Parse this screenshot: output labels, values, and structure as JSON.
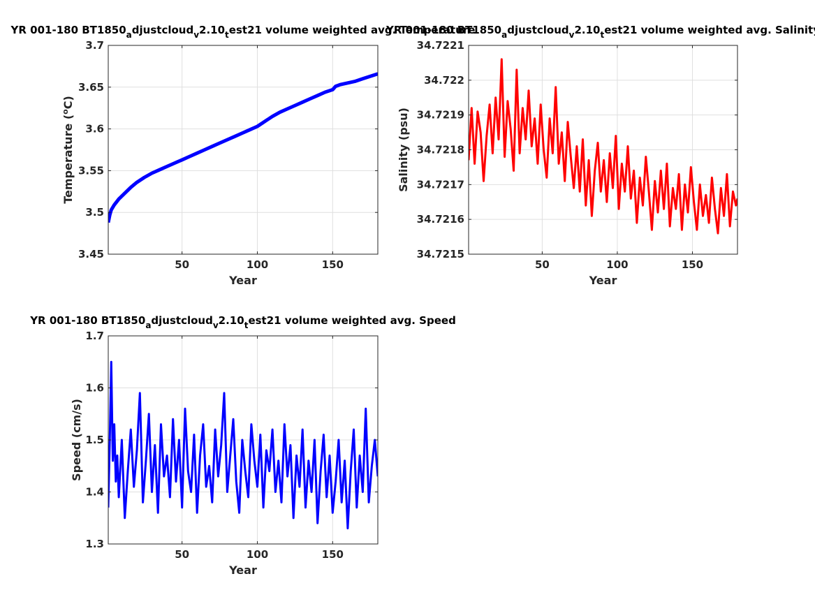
{
  "chart_data": [
    {
      "type": "line",
      "title_parts": [
        "YR 001-180 BT1850",
        "a",
        "djustcloud",
        "v",
        "2.10",
        "t",
        "est21 volume weighted avg. Temperature"
      ],
      "xlabel": "Year",
      "ylabel": "Temperature (",
      "ylabel_sup": "o",
      "ylabel_tail": "C)",
      "xlim": [
        1,
        180
      ],
      "ylim": [
        3.45,
        3.7
      ],
      "xticks": [
        50,
        100,
        150
      ],
      "xtick_labels": [
        "50",
        "100",
        "150"
      ],
      "yticks": [
        3.45,
        3.5,
        3.55,
        3.6,
        3.65,
        3.7
      ],
      "ytick_labels": [
        "3.45",
        "3.5",
        "3.55",
        "3.6",
        "3.65",
        "3.7"
      ],
      "grid": true,
      "color": "#0000ff",
      "line_width": 5,
      "x": [
        1,
        2,
        3,
        5,
        8,
        12,
        16,
        20,
        25,
        30,
        35,
        40,
        45,
        50,
        55,
        60,
        65,
        70,
        75,
        80,
        85,
        90,
        95,
        100,
        105,
        110,
        115,
        120,
        125,
        130,
        135,
        140,
        145,
        150,
        152,
        155,
        160,
        165,
        170,
        175,
        180
      ],
      "y": [
        3.488,
        3.497,
        3.503,
        3.509,
        3.516,
        3.523,
        3.53,
        3.536,
        3.542,
        3.547,
        3.551,
        3.555,
        3.559,
        3.563,
        3.567,
        3.571,
        3.575,
        3.579,
        3.583,
        3.587,
        3.591,
        3.595,
        3.599,
        3.603,
        3.609,
        3.615,
        3.62,
        3.624,
        3.628,
        3.632,
        3.636,
        3.64,
        3.644,
        3.647,
        3.651,
        3.653,
        3.655,
        3.657,
        3.66,
        3.663,
        3.666
      ]
    },
    {
      "type": "line",
      "title_parts": [
        "YR 001-180 BT1850",
        "a",
        "djustcloud",
        "v",
        "2.10",
        "t",
        "est21 volume weighted avg. Salinity"
      ],
      "xlabel": "Year",
      "ylabel": "Salinity (psu)",
      "xlim": [
        1,
        180
      ],
      "ylim": [
        34.7215,
        34.7221
      ],
      "xticks": [
        50,
        100,
        150
      ],
      "xtick_labels": [
        "50",
        "100",
        "150"
      ],
      "yticks": [
        34.7215,
        34.7216,
        34.7217,
        34.7218,
        34.7219,
        34.722,
        34.7221
      ],
      "ytick_labels": [
        "34.7215",
        "34.7216",
        "34.7217",
        "34.7218",
        "34.7219",
        "34.722",
        "34.7221"
      ],
      "grid": true,
      "color": "#ff0000",
      "line_width": 3,
      "x": [
        1,
        3,
        5,
        7,
        9,
        11,
        13,
        15,
        17,
        19,
        21,
        23,
        25,
        27,
        29,
        31,
        33,
        35,
        37,
        39,
        41,
        43,
        45,
        47,
        49,
        51,
        53,
        55,
        57,
        59,
        61,
        63,
        65,
        67,
        69,
        71,
        73,
        75,
        77,
        79,
        81,
        83,
        85,
        87,
        89,
        91,
        93,
        95,
        97,
        99,
        101,
        103,
        105,
        107,
        109,
        111,
        113,
        115,
        117,
        119,
        121,
        123,
        125,
        127,
        129,
        131,
        133,
        135,
        137,
        139,
        141,
        143,
        145,
        147,
        149,
        151,
        153,
        155,
        157,
        159,
        161,
        163,
        165,
        167,
        169,
        171,
        173,
        175,
        177,
        179,
        180
      ],
      "y": [
        34.72177,
        34.72192,
        34.72176,
        34.72191,
        34.72185,
        34.72171,
        34.72184,
        34.72193,
        34.72179,
        34.72195,
        34.72183,
        34.72206,
        34.72178,
        34.72194,
        34.72186,
        34.72174,
        34.72203,
        34.72179,
        34.72192,
        34.72183,
        34.72197,
        34.72181,
        34.72189,
        34.72176,
        34.72193,
        34.7218,
        34.72172,
        34.72189,
        34.72179,
        34.72198,
        34.72176,
        34.72185,
        34.72171,
        34.72188,
        34.72178,
        34.72169,
        34.72181,
        34.72168,
        34.72183,
        34.72164,
        34.72177,
        34.72161,
        34.72174,
        34.72182,
        34.72168,
        34.72177,
        34.72165,
        34.72179,
        34.72169,
        34.72184,
        34.72163,
        34.72176,
        34.72168,
        34.72181,
        34.72166,
        34.72174,
        34.72159,
        34.72172,
        34.72164,
        34.72178,
        34.72168,
        34.72157,
        34.72171,
        34.72162,
        34.72174,
        34.72163,
        34.72176,
        34.72158,
        34.72169,
        34.72163,
        34.72173,
        34.72157,
        34.7217,
        34.72162,
        34.72175,
        34.72165,
        34.72157,
        34.7217,
        34.72161,
        34.72167,
        34.72159,
        34.72172,
        34.72163,
        34.72156,
        34.72169,
        34.72161,
        34.72173,
        34.72158,
        34.72168,
        34.72164,
        34.72166
      ]
    },
    {
      "type": "line",
      "title_parts": [
        "YR 001-180 BT1850",
        "a",
        "djustcloud",
        "v",
        "2.10",
        "t",
        "est21 volume weighted avg. Speed"
      ],
      "xlabel": "Year",
      "ylabel": "Speed (cm/s)",
      "xlim": [
        1,
        180
      ],
      "ylim": [
        1.3,
        1.7
      ],
      "xticks": [
        50,
        100,
        150
      ],
      "xtick_labels": [
        "50",
        "100",
        "150"
      ],
      "yticks": [
        1.3,
        1.4,
        1.5,
        1.6,
        1.7
      ],
      "ytick_labels": [
        "1.3",
        "1.4",
        "1.5",
        "1.6",
        "1.7"
      ],
      "grid": true,
      "color": "#0000ff",
      "line_width": 3,
      "x": [
        1,
        2,
        3,
        4,
        5,
        6,
        7,
        8,
        10,
        12,
        14,
        16,
        18,
        20,
        22,
        24,
        26,
        28,
        30,
        32,
        34,
        36,
        38,
        40,
        42,
        44,
        46,
        48,
        50,
        52,
        54,
        56,
        58,
        60,
        62,
        64,
        66,
        68,
        70,
        72,
        74,
        76,
        78,
        80,
        82,
        84,
        86,
        88,
        90,
        92,
        94,
        96,
        98,
        100,
        102,
        104,
        106,
        108,
        110,
        112,
        114,
        116,
        118,
        120,
        122,
        124,
        126,
        128,
        130,
        132,
        134,
        136,
        138,
        140,
        142,
        144,
        146,
        148,
        150,
        152,
        154,
        156,
        158,
        160,
        162,
        164,
        166,
        168,
        170,
        172,
        174,
        176,
        178,
        180
      ],
      "y": [
        1.37,
        1.5,
        1.65,
        1.46,
        1.53,
        1.42,
        1.47,
        1.39,
        1.5,
        1.35,
        1.44,
        1.52,
        1.41,
        1.48,
        1.59,
        1.38,
        1.46,
        1.55,
        1.4,
        1.49,
        1.36,
        1.53,
        1.43,
        1.47,
        1.39,
        1.54,
        1.42,
        1.5,
        1.37,
        1.56,
        1.44,
        1.4,
        1.51,
        1.36,
        1.47,
        1.53,
        1.41,
        1.45,
        1.38,
        1.52,
        1.43,
        1.49,
        1.59,
        1.4,
        1.47,
        1.54,
        1.42,
        1.36,
        1.5,
        1.44,
        1.39,
        1.53,
        1.46,
        1.41,
        1.51,
        1.37,
        1.48,
        1.44,
        1.52,
        1.4,
        1.46,
        1.38,
        1.53,
        1.43,
        1.49,
        1.35,
        1.47,
        1.41,
        1.52,
        1.37,
        1.46,
        1.4,
        1.5,
        1.34,
        1.44,
        1.51,
        1.39,
        1.47,
        1.36,
        1.42,
        1.5,
        1.38,
        1.46,
        1.33,
        1.44,
        1.52,
        1.37,
        1.47,
        1.4,
        1.56,
        1.38,
        1.45,
        1.5,
        1.43
      ]
    }
  ]
}
